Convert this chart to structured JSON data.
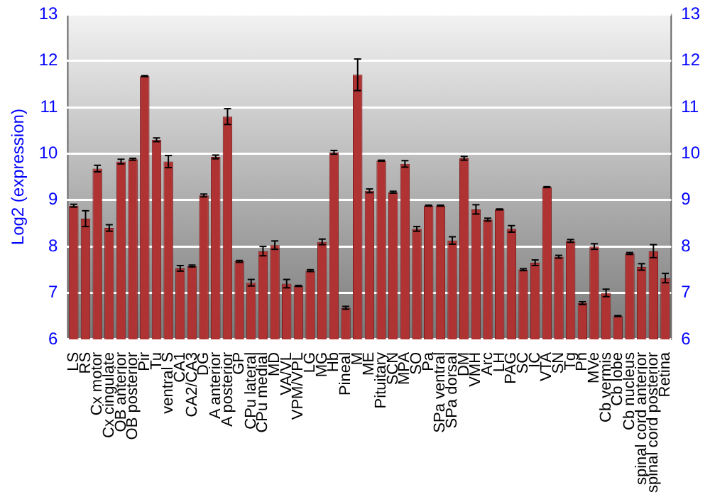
{
  "chart_data": {
    "type": "bar",
    "ylabel": "Log2 (expression)",
    "categories": [
      "LS",
      "RS",
      "Cx motor",
      "Cx cingulate",
      "OB anterior",
      "OB posterior",
      "Pir",
      "Tu",
      "ventral S",
      "CA1",
      "CA2/CA3",
      "DG",
      "A anterior",
      "A posterior",
      "GP",
      "CPu lateral",
      "CPu medial",
      "MD",
      "VA/VL",
      "VPM/VPL",
      "LG",
      "MG",
      "Hb",
      "Pineal",
      "M",
      "ME",
      "Pituitary",
      "SCN",
      "MPA",
      "SO",
      "Pa",
      "SPa ventral",
      "SPa dorsal",
      "DM",
      "VMH",
      "Arc",
      "LH",
      "PAG",
      "SC",
      "IC",
      "VTA",
      "SN",
      "Tg",
      "Pn",
      "MVe",
      "Cb vermis",
      "Cb lobe",
      "Cb nucleus",
      "spinal cord anterior",
      "spinal cord posterior",
      "Retina"
    ],
    "values": [
      8.88,
      8.6,
      9.68,
      8.4,
      9.83,
      9.88,
      11.67,
      10.3,
      9.83,
      7.53,
      7.58,
      9.1,
      9.93,
      10.8,
      7.68,
      7.22,
      7.9,
      8.03,
      7.2,
      7.15,
      7.48,
      8.1,
      10.03,
      6.68,
      11.7,
      9.2,
      9.85,
      9.17,
      9.78,
      8.38,
      8.88,
      8.88,
      8.13,
      9.9,
      8.8,
      8.58,
      8.8,
      8.38,
      7.5,
      7.65,
      9.28,
      7.78,
      8.12,
      6.78,
      8.0,
      7.0,
      6.5,
      7.85,
      7.56,
      7.9,
      7.32
    ],
    "errors": [
      0.03,
      0.17,
      0.07,
      0.07,
      0.05,
      0.02,
      0.01,
      0.04,
      0.13,
      0.06,
      0.02,
      0.03,
      0.04,
      0.17,
      0.02,
      0.07,
      0.1,
      0.09,
      0.09,
      0.01,
      0.02,
      0.06,
      0.04,
      0.03,
      0.34,
      0.04,
      0.01,
      0.02,
      0.07,
      0.05,
      0.01,
      0.01,
      0.08,
      0.04,
      0.1,
      0.03,
      0.01,
      0.07,
      0.02,
      0.06,
      0.01,
      0.03,
      0.03,
      0.03,
      0.06,
      0.08,
      0.01,
      0.02,
      0.07,
      0.14,
      0.1
    ],
    "color": "#b03333",
    "ylim": [
      6,
      13
    ],
    "yticks": [
      6,
      7,
      8,
      9,
      10,
      11,
      12,
      13
    ],
    "y2lim": [
      6,
      13
    ],
    "y2ticks": [
      6,
      7,
      8,
      9,
      10,
      11,
      12,
      13
    ],
    "grid": "y"
  }
}
